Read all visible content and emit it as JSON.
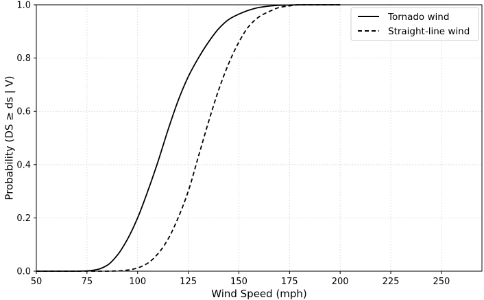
{
  "chart_data": {
    "type": "line",
    "xlabel": "Wind Speed (mph)",
    "ylabel": "Probability (DS ≥ ds | V)",
    "xlim": [
      50,
      270
    ],
    "ylim": [
      0,
      1.0
    ],
    "x_ticks": [
      50,
      75,
      100,
      125,
      150,
      175,
      200,
      225,
      250
    ],
    "y_ticks": [
      0.0,
      0.2,
      0.4,
      0.6,
      0.8,
      1.0
    ],
    "x_tick_labels": [
      "50",
      "75",
      "100",
      "125",
      "150",
      "175",
      "200",
      "225",
      "250"
    ],
    "y_tick_labels": [
      "0.0",
      "0.2",
      "0.4",
      "0.6",
      "0.8",
      "1.0"
    ],
    "grid": true,
    "legend_position": "top-right",
    "series": [
      {
        "name": "Tornado wind",
        "style": "solid",
        "color": "#000000",
        "x": [
          50,
          70,
          75,
          80,
          85,
          90,
          95,
          100,
          105,
          110,
          115,
          120,
          125,
          130,
          135,
          140,
          145,
          150,
          155,
          160,
          170,
          180,
          200
        ],
        "y": [
          0.0,
          0.0,
          0.001,
          0.006,
          0.022,
          0.06,
          0.12,
          0.2,
          0.3,
          0.41,
          0.53,
          0.64,
          0.73,
          0.8,
          0.86,
          0.91,
          0.945,
          0.965,
          0.98,
          0.99,
          0.998,
          1.0,
          1.0
        ]
      },
      {
        "name": "Straight-line wind",
        "style": "dashed",
        "color": "#000000",
        "x": [
          50,
          85,
          90,
          95,
          100,
          105,
          110,
          115,
          120,
          125,
          130,
          135,
          140,
          145,
          150,
          155,
          160,
          165,
          170,
          175,
          180,
          190,
          200
        ],
        "y": [
          0.0,
          0.0,
          0.001,
          0.004,
          0.012,
          0.03,
          0.065,
          0.12,
          0.2,
          0.3,
          0.43,
          0.56,
          0.68,
          0.78,
          0.86,
          0.92,
          0.955,
          0.975,
          0.99,
          0.996,
          1.0,
          1.0,
          1.0
        ]
      }
    ]
  }
}
